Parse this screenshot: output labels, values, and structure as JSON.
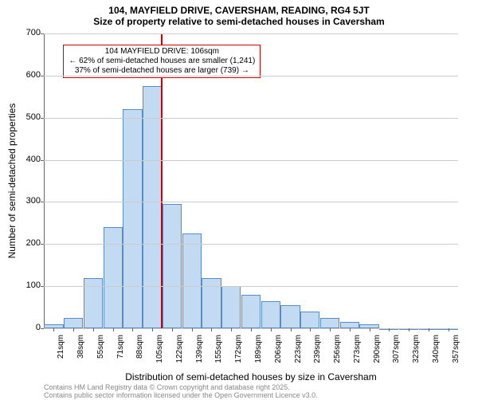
{
  "title_line1": "104, MAYFIELD DRIVE, CAVERSHAM, READING, RG4 5JT",
  "title_line2": "Size of property relative to semi-detached houses in Caversham",
  "chart": {
    "type": "bar",
    "background_color": "#ffffff",
    "grid_color": "#cccccc",
    "axis_color": "#666666",
    "bar_fill": "#c3daf3",
    "bar_border": "#5a8bc4",
    "bar_width": 0.98,
    "ylim": [
      0,
      700
    ],
    "yticks": [
      0,
      100,
      200,
      300,
      400,
      500,
      600,
      700
    ],
    "ylabel": "Number of semi-detached properties",
    "xlabel": "Distribution of semi-detached houses by size in Caversham",
    "x_labels": [
      "21sqm",
      "38sqm",
      "55sqm",
      "71sqm",
      "88sqm",
      "105sqm",
      "122sqm",
      "139sqm",
      "155sqm",
      "172sqm",
      "189sqm",
      "206sqm",
      "223sqm",
      "239sqm",
      "256sqm",
      "273sqm",
      "290sqm",
      "307sqm",
      "323sqm",
      "340sqm",
      "357sqm"
    ],
    "values": [
      10,
      25,
      120,
      240,
      520,
      575,
      295,
      225,
      120,
      100,
      80,
      65,
      55,
      40,
      25,
      15,
      10,
      0,
      0,
      0,
      0
    ],
    "reference_line": {
      "index": 5,
      "color": "#cc0000",
      "width": 2
    },
    "annotation": {
      "line1": "104 MAYFIELD DRIVE: 106sqm",
      "line2": "← 62% of semi-detached houses are smaller (1,241)",
      "line3": "37% of semi-detached houses are larger (739) →",
      "border_color": "#cc0000",
      "bg_color": "#ffffff",
      "fontsize": 10
    },
    "title_fontsize": 12,
    "label_fontsize": 12,
    "tick_fontsize": 11,
    "xtick_fontsize": 10
  },
  "footer": {
    "line1": "Contains HM Land Registry data © Crown copyright and database right 2025.",
    "line2": "Contains public sector information licensed under the Open Government Licence v3.0.",
    "color": "#888888",
    "fontsize": 9
  }
}
